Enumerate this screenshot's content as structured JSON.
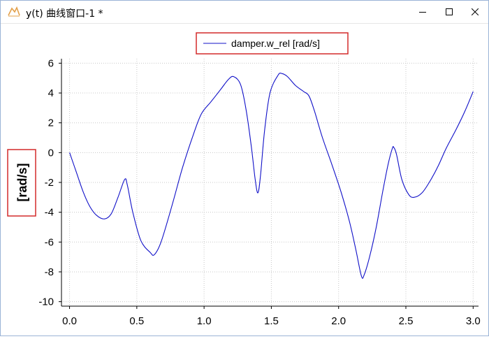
{
  "window": {
    "title": "y(t) 曲线窗口-1 *",
    "icon": "curve-window-icon",
    "controls": [
      "minimize-icon",
      "maximize-icon",
      "close-icon"
    ]
  },
  "colors": {
    "series": "#1010c8",
    "highlight_box": "#d42a2a",
    "grid": "#c8c8c8",
    "window_border": "#9ab3d6"
  },
  "chart_data": {
    "type": "line",
    "title": "",
    "xlabel": "",
    "ylabel": "[rad/s]",
    "xlim": [
      -0.06,
      3.04
    ],
    "ylim": [
      -10.3,
      6.3
    ],
    "xticks": [
      0.0,
      0.5,
      1.0,
      1.5,
      2.0,
      2.5,
      3.0
    ],
    "xtick_labels": [
      "0.0",
      "0.5",
      "1.0",
      "1.5",
      "2.0",
      "2.5",
      "3.0"
    ],
    "yticks": [
      6,
      4,
      2,
      0,
      -2,
      -4,
      -6,
      -8,
      -10
    ],
    "ytick_labels": [
      "6",
      "4",
      "2",
      "0",
      "-2",
      "-4",
      "-6",
      "-8",
      "-10"
    ],
    "grid": true,
    "legend_position": "top-center",
    "series": [
      {
        "name": "damper.w_rel [rad/s]",
        "color": "#1010c8",
        "x": [
          0.0,
          0.05,
          0.1,
          0.15,
          0.2,
          0.26,
          0.31,
          0.36,
          0.41,
          0.43,
          0.47,
          0.53,
          0.6,
          0.63,
          0.68,
          0.76,
          0.84,
          0.92,
          0.98,
          1.05,
          1.12,
          1.18,
          1.22,
          1.27,
          1.31,
          1.35,
          1.38,
          1.4,
          1.42,
          1.45,
          1.49,
          1.55,
          1.58,
          1.62,
          1.68,
          1.74,
          1.78,
          1.82,
          1.88,
          1.95,
          2.02,
          2.08,
          2.13,
          2.17,
          2.19,
          2.23,
          2.28,
          2.33,
          2.37,
          2.4,
          2.41,
          2.43,
          2.47,
          2.52,
          2.56,
          2.62,
          2.68,
          2.74,
          2.8,
          2.87,
          2.94,
          3.0
        ],
        "y": [
          0.0,
          -1.3,
          -2.6,
          -3.6,
          -4.2,
          -4.45,
          -4.1,
          -3.0,
          -1.8,
          -2.2,
          -4.0,
          -5.9,
          -6.7,
          -6.85,
          -6.0,
          -3.6,
          -1.0,
          1.2,
          2.6,
          3.4,
          4.2,
          4.9,
          5.1,
          4.6,
          3.0,
          0.5,
          -1.8,
          -2.7,
          -1.5,
          1.5,
          4.0,
          5.2,
          5.3,
          5.1,
          4.5,
          4.1,
          3.8,
          2.8,
          1.0,
          -0.8,
          -2.7,
          -4.6,
          -6.6,
          -8.3,
          -8.2,
          -7.0,
          -5.0,
          -2.5,
          -0.7,
          0.3,
          0.35,
          -0.1,
          -1.8,
          -2.8,
          -3.0,
          -2.7,
          -1.9,
          -0.9,
          0.3,
          1.5,
          2.8,
          4.1
        ]
      }
    ]
  }
}
